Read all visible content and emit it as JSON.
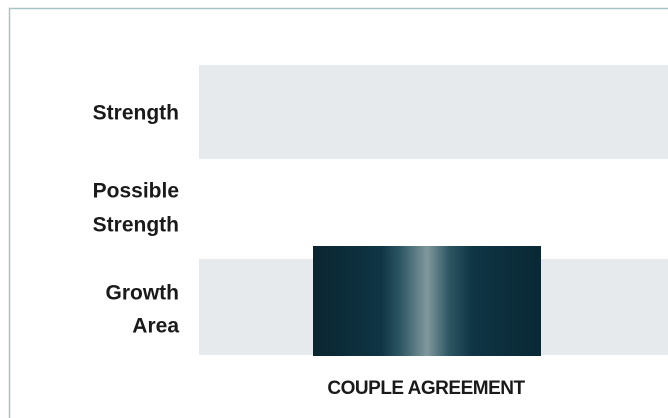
{
  "rows": [
    [
      "Strength"
    ],
    [
      "Possible",
      "Strength"
    ],
    [
      "Growth",
      "Area"
    ]
  ],
  "x_label": "COUPLE AGREEMENT"
}
